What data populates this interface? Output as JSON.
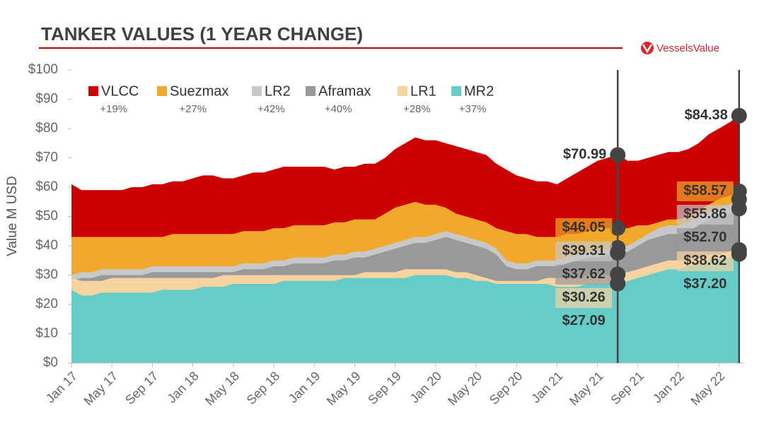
{
  "chart_data": {
    "type": "area",
    "title": "TANKER VALUES (1 YEAR CHANGE)",
    "brand": "VesselsValue",
    "y_label": "Value M USD",
    "ylim": [
      0,
      100
    ],
    "yticks": [
      {
        "value": 0,
        "label": "$0"
      },
      {
        "value": 10,
        "label": "$10"
      },
      {
        "value": 20,
        "label": "$20"
      },
      {
        "value": 30,
        "label": "$30"
      },
      {
        "value": 40,
        "label": "$40"
      },
      {
        "value": 50,
        "label": "$50"
      },
      {
        "value": 60,
        "label": "$60"
      },
      {
        "value": 70,
        "label": "$70"
      },
      {
        "value": 80,
        "label": "$80"
      },
      {
        "value": 90,
        "label": "$90"
      },
      {
        "value": 100,
        "label": "$100"
      }
    ],
    "categories": [
      "Jan 17",
      null,
      null,
      null,
      "May 17",
      null,
      null,
      null,
      "Sep 17",
      null,
      null,
      null,
      "Jan 18",
      null,
      null,
      null,
      "May 18",
      null,
      null,
      null,
      "Sep 18",
      null,
      null,
      null,
      "Jan 19",
      null,
      null,
      null,
      "May 19",
      null,
      null,
      null,
      "Sep 19",
      null,
      null,
      null,
      "Jan 20",
      null,
      null,
      null,
      "May 20",
      null,
      null,
      null,
      "Sep 20",
      null,
      null,
      null,
      "Jan 21",
      null,
      null,
      null,
      "May 21",
      null,
      null,
      null,
      "Sep 21",
      null,
      null,
      null,
      "Jan 22",
      null,
      null,
      null,
      "May 22",
      null,
      null
    ],
    "series": [
      {
        "name": "VLCC",
        "change": "+19%",
        "color": "#cc0000",
        "values": [
          61,
          59,
          59,
          59,
          59,
          59,
          60,
          60,
          61,
          61,
          62,
          62,
          63,
          64,
          64,
          63,
          63,
          64,
          65,
          65,
          66,
          67,
          67,
          67,
          67,
          67,
          66,
          67,
          67,
          68,
          68,
          70,
          73,
          75,
          77,
          76,
          76,
          75,
          74,
          73,
          72,
          71,
          68,
          66,
          64,
          63,
          62,
          62,
          61,
          63,
          65,
          67,
          69,
          70,
          70.99,
          69,
          69,
          70,
          71,
          72,
          72,
          73,
          75,
          78,
          80,
          82,
          84.38
        ],
        "value_labels": [
          null,
          null,
          null,
          null,
          null,
          null,
          null,
          null,
          null,
          null,
          null,
          null,
          null,
          null,
          null,
          null,
          null,
          null,
          null,
          null,
          null,
          null,
          null,
          null,
          null,
          null,
          null,
          null,
          null,
          null,
          null,
          null,
          null,
          null,
          null,
          null,
          null,
          null,
          null,
          null,
          null,
          null,
          null,
          null,
          null,
          null,
          null,
          null,
          null,
          null,
          null,
          null,
          null,
          null,
          "$70.99",
          null,
          null,
          null,
          null,
          null,
          null,
          null,
          null,
          null,
          null,
          null,
          "$84.38"
        ]
      },
      {
        "name": "Suezmax",
        "change": "+27%",
        "color": "#f0a92a",
        "values": [
          43,
          43,
          43,
          43,
          43,
          43,
          43,
          43,
          43,
          43,
          44,
          44,
          44,
          44,
          44,
          44,
          44,
          45,
          45,
          45,
          46,
          46,
          47,
          47,
          47,
          47,
          48,
          48,
          49,
          49,
          49,
          51,
          53,
          54,
          55,
          54,
          54,
          53,
          51,
          50,
          49,
          48,
          46,
          45,
          44,
          44,
          43,
          43,
          43,
          44,
          44,
          45,
          46,
          46,
          46.05,
          46,
          47,
          47,
          48,
          49,
          49,
          50,
          52,
          54,
          56,
          57,
          58.57
        ],
        "value_labels": [
          null,
          null,
          null,
          null,
          null,
          null,
          null,
          null,
          null,
          null,
          null,
          null,
          null,
          null,
          null,
          null,
          null,
          null,
          null,
          null,
          null,
          null,
          null,
          null,
          null,
          null,
          null,
          null,
          null,
          null,
          null,
          null,
          null,
          null,
          null,
          null,
          null,
          null,
          null,
          null,
          null,
          null,
          null,
          null,
          null,
          null,
          null,
          null,
          null,
          null,
          null,
          null,
          null,
          null,
          "$46.05",
          null,
          null,
          null,
          null,
          null,
          null,
          null,
          null,
          null,
          null,
          null,
          "$58.57"
        ]
      },
      {
        "name": "LR2",
        "change": "+42%",
        "color": "#c8c8c8",
        "values": [
          30,
          31,
          31,
          32,
          32,
          32,
          32,
          32,
          33,
          33,
          33,
          33,
          33,
          33,
          33,
          33,
          33,
          34,
          34,
          34,
          35,
          35,
          36,
          36,
          36,
          36,
          37,
          37,
          38,
          38,
          39,
          40,
          41,
          42,
          43,
          43,
          44,
          45,
          44,
          43,
          42,
          41,
          39,
          35,
          34,
          34,
          35,
          35,
          35,
          36,
          37,
          38,
          38,
          39,
          39.31,
          40,
          42,
          44,
          46,
          47,
          47,
          48,
          50,
          52,
          53,
          54,
          55.86
        ],
        "value_labels": [
          null,
          null,
          null,
          null,
          null,
          null,
          null,
          null,
          null,
          null,
          null,
          null,
          null,
          null,
          null,
          null,
          null,
          null,
          null,
          null,
          null,
          null,
          null,
          null,
          null,
          null,
          null,
          null,
          null,
          null,
          null,
          null,
          null,
          null,
          null,
          null,
          null,
          null,
          null,
          null,
          null,
          null,
          null,
          null,
          null,
          null,
          null,
          null,
          null,
          null,
          null,
          null,
          null,
          null,
          "$39.31",
          null,
          null,
          null,
          null,
          null,
          null,
          null,
          null,
          null,
          null,
          null,
          "$55.86"
        ]
      },
      {
        "name": "Aframax",
        "change": "+40%",
        "color": "#999999",
        "values": [
          28,
          29,
          29,
          30,
          30,
          30,
          30,
          30,
          31,
          31,
          31,
          31,
          31,
          31,
          31,
          31,
          31,
          32,
          32,
          32,
          33,
          33,
          34,
          34,
          34,
          34,
          35,
          35,
          36,
          36,
          37,
          38,
          39,
          40,
          41,
          41,
          42,
          43,
          42,
          41,
          40,
          39,
          37,
          33,
          32,
          32,
          33,
          33,
          33,
          34,
          35,
          36,
          36,
          37,
          37.62,
          38,
          40,
          42,
          43,
          44,
          44,
          45,
          47,
          49,
          50,
          51,
          52.7
        ],
        "value_labels": [
          null,
          null,
          null,
          null,
          null,
          null,
          null,
          null,
          null,
          null,
          null,
          null,
          null,
          null,
          null,
          null,
          null,
          null,
          null,
          null,
          null,
          null,
          null,
          null,
          null,
          null,
          null,
          null,
          null,
          null,
          null,
          null,
          null,
          null,
          null,
          null,
          null,
          null,
          null,
          null,
          null,
          null,
          null,
          null,
          null,
          null,
          null,
          null,
          null,
          null,
          null,
          null,
          null,
          null,
          "$37.62",
          null,
          null,
          null,
          null,
          null,
          null,
          null,
          null,
          null,
          null,
          null,
          "$52.70"
        ]
      },
      {
        "name": "LR1",
        "change": "+28%",
        "color": "#f7d3a0",
        "values": [
          29,
          28,
          28,
          28,
          29,
          29,
          29,
          29,
          29,
          29,
          29,
          29,
          29,
          29,
          29,
          30,
          30,
          30,
          30,
          30,
          30,
          30,
          30,
          30,
          30,
          30,
          30,
          30,
          30,
          31,
          31,
          31,
          31,
          32,
          32,
          32,
          32,
          32,
          31,
          31,
          30,
          29,
          28,
          28,
          28,
          28,
          28,
          29,
          29,
          29,
          29,
          30,
          30,
          30,
          30.26,
          31,
          32,
          33,
          34,
          35,
          35,
          35,
          36,
          37,
          37,
          38,
          38.62
        ],
        "value_labels": [
          null,
          null,
          null,
          null,
          null,
          null,
          null,
          null,
          null,
          null,
          null,
          null,
          null,
          null,
          null,
          null,
          null,
          null,
          null,
          null,
          null,
          null,
          null,
          null,
          null,
          null,
          null,
          null,
          null,
          null,
          null,
          null,
          null,
          null,
          null,
          null,
          null,
          null,
          null,
          null,
          null,
          null,
          null,
          null,
          null,
          null,
          null,
          null,
          null,
          null,
          null,
          null,
          null,
          null,
          "$30.26",
          null,
          null,
          null,
          null,
          null,
          null,
          null,
          null,
          null,
          null,
          null,
          "$38.62"
        ]
      },
      {
        "name": "MR2",
        "change": "+37%",
        "color": "#66ccc8",
        "values": [
          25,
          23,
          23,
          24,
          24,
          24,
          24,
          24,
          24,
          25,
          25,
          25,
          25,
          26,
          26,
          26,
          27,
          27,
          27,
          27,
          27,
          28,
          28,
          28,
          28,
          28,
          28,
          29,
          29,
          29,
          29,
          29,
          29,
          29,
          30,
          30,
          30,
          30,
          29,
          29,
          28,
          28,
          27,
          27,
          27,
          27,
          27,
          27,
          26,
          26,
          26,
          27,
          27,
          27,
          27.09,
          28,
          29,
          30,
          31,
          32,
          32,
          33,
          34,
          35,
          36,
          36,
          37.2
        ],
        "value_labels": [
          null,
          null,
          null,
          null,
          null,
          null,
          null,
          null,
          null,
          null,
          null,
          null,
          null,
          null,
          null,
          null,
          null,
          null,
          null,
          null,
          null,
          null,
          null,
          null,
          null,
          null,
          null,
          null,
          null,
          null,
          null,
          null,
          null,
          null,
          null,
          null,
          null,
          null,
          null,
          null,
          null,
          null,
          null,
          null,
          null,
          null,
          null,
          null,
          null,
          null,
          null,
          null,
          null,
          null,
          "$27.09",
          null,
          null,
          null,
          null,
          null,
          null,
          null,
          null,
          null,
          null,
          null,
          "$37.20"
        ]
      }
    ]
  }
}
